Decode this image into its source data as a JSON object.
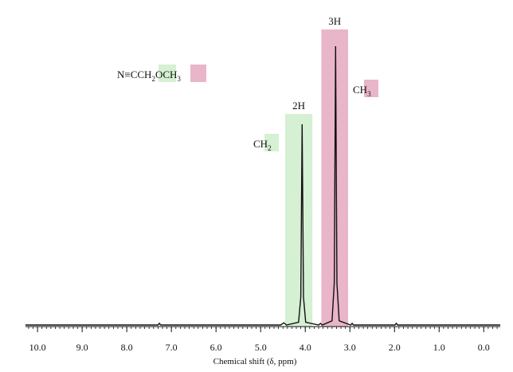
{
  "chart_data": {
    "type": "line",
    "xlabel": "Chemical shift (δ, ppm)",
    "xlim": [
      10.27,
      -0.37
    ],
    "ylim": [
      0,
      1
    ],
    "xticks": [
      {
        "value": 10,
        "label": "10.0"
      },
      {
        "value": 9,
        "label": "9.0"
      },
      {
        "value": 8,
        "label": "8.0"
      },
      {
        "value": 7,
        "label": "7.0"
      },
      {
        "value": 6,
        "label": "6.0"
      },
      {
        "value": 5,
        "label": "5.0"
      },
      {
        "value": 4,
        "label": "4.0"
      },
      {
        "value": 3,
        "label": "3.0"
      },
      {
        "value": 2,
        "label": "2.0"
      },
      {
        "value": 1,
        "label": "1.0"
      },
      {
        "value": 0,
        "label": "0.0"
      }
    ],
    "series": [
      {
        "color": "#111111",
        "x": [
          10.27,
          7.3,
          7.27,
          7.24,
          6.9,
          4.55,
          4.48,
          4.42,
          4.15,
          4.1,
          4.07,
          4.04,
          3.99,
          3.7,
          3.66,
          3.62,
          3.4,
          3.35,
          3.32,
          3.29,
          3.24,
          2.98,
          2.95,
          2.92,
          1.99,
          1.96,
          1.93,
          -0.37
        ],
        "values": [
          0,
          0,
          0.006,
          0,
          0,
          0,
          0.008,
          0,
          0.01,
          0.1,
          0.72,
          0.1,
          0.01,
          0,
          0.006,
          0,
          0.015,
          0.15,
          1.0,
          0.15,
          0.015,
          0,
          0.006,
          0,
          0,
          0.006,
          0,
          0
        ]
      }
    ],
    "regions": [
      {
        "label": "2H",
        "group": "CH",
        "group_sub": "2",
        "from": 4.45,
        "to": 3.84,
        "color": "#d5f0d3"
      },
      {
        "label": "3H",
        "group": "CH",
        "group_sub": "3",
        "from": 3.64,
        "to": 3.04,
        "color": "#e9b5c9"
      }
    ],
    "formula": {
      "part1": "N≡CCH",
      "sub1": "2",
      "part2": "OCH",
      "sub2": "3"
    }
  }
}
